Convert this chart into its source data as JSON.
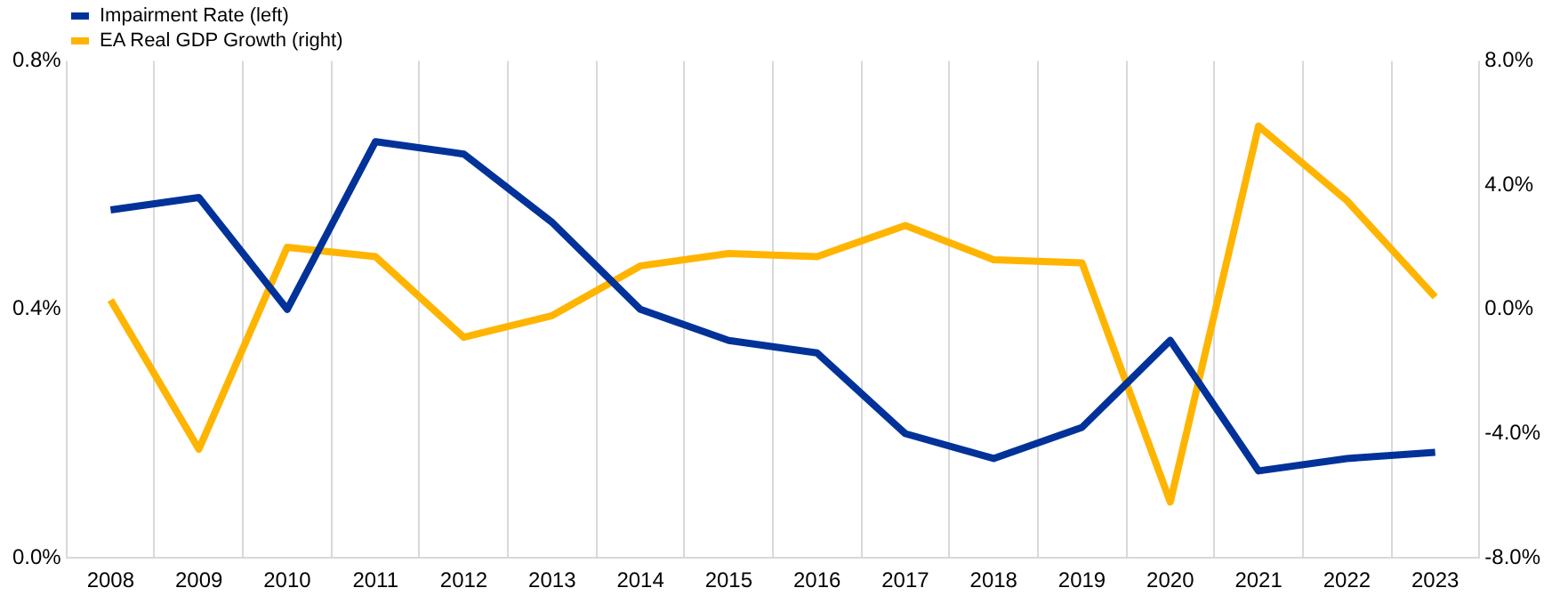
{
  "chart_data": {
    "type": "line",
    "categories": [
      "2008",
      "2009",
      "2010",
      "2011",
      "2012",
      "2013",
      "2014",
      "2015",
      "2016",
      "2017",
      "2018",
      "2019",
      "2020",
      "2021",
      "2022",
      "2023"
    ],
    "series": [
      {
        "name": "Impairment Rate (left)",
        "color": "#003299",
        "values": [
          0.56,
          0.58,
          0.4,
          0.67,
          0.65,
          0.54,
          0.4,
          0.35,
          0.33,
          0.2,
          0.16,
          0.21,
          0.35,
          0.14,
          0.16,
          0.17
        ]
      },
      {
        "name": "EA Real GDP Growth (right)",
        "color": "#ffb400",
        "axis": "y2",
        "values": [
          0.3,
          -4.5,
          2.0,
          1.7,
          -0.9,
          -0.2,
          1.4,
          1.8,
          1.7,
          2.7,
          1.6,
          1.5,
          -6.2,
          5.9,
          3.5,
          0.4
        ]
      }
    ],
    "ylim": [
      0,
      0.8
    ],
    "yticks": [
      {
        "value": 0,
        "label": "0.0%"
      },
      {
        "value": 0.4,
        "label": "0.4%"
      },
      {
        "value": 0.8,
        "label": "0.8%"
      }
    ],
    "y2lim": [
      -8,
      8
    ],
    "y2ticks": [
      {
        "value": -8,
        "label": "-8.0%"
      },
      {
        "value": -4,
        "label": "-4.0%"
      },
      {
        "value": 0,
        "label": "0.0%"
      },
      {
        "value": 4,
        "label": "4.0%"
      },
      {
        "value": 8,
        "label": "8.0%"
      }
    ],
    "grid": "x",
    "legend": "top left",
    "marker": "none",
    "line_style": "solid"
  }
}
